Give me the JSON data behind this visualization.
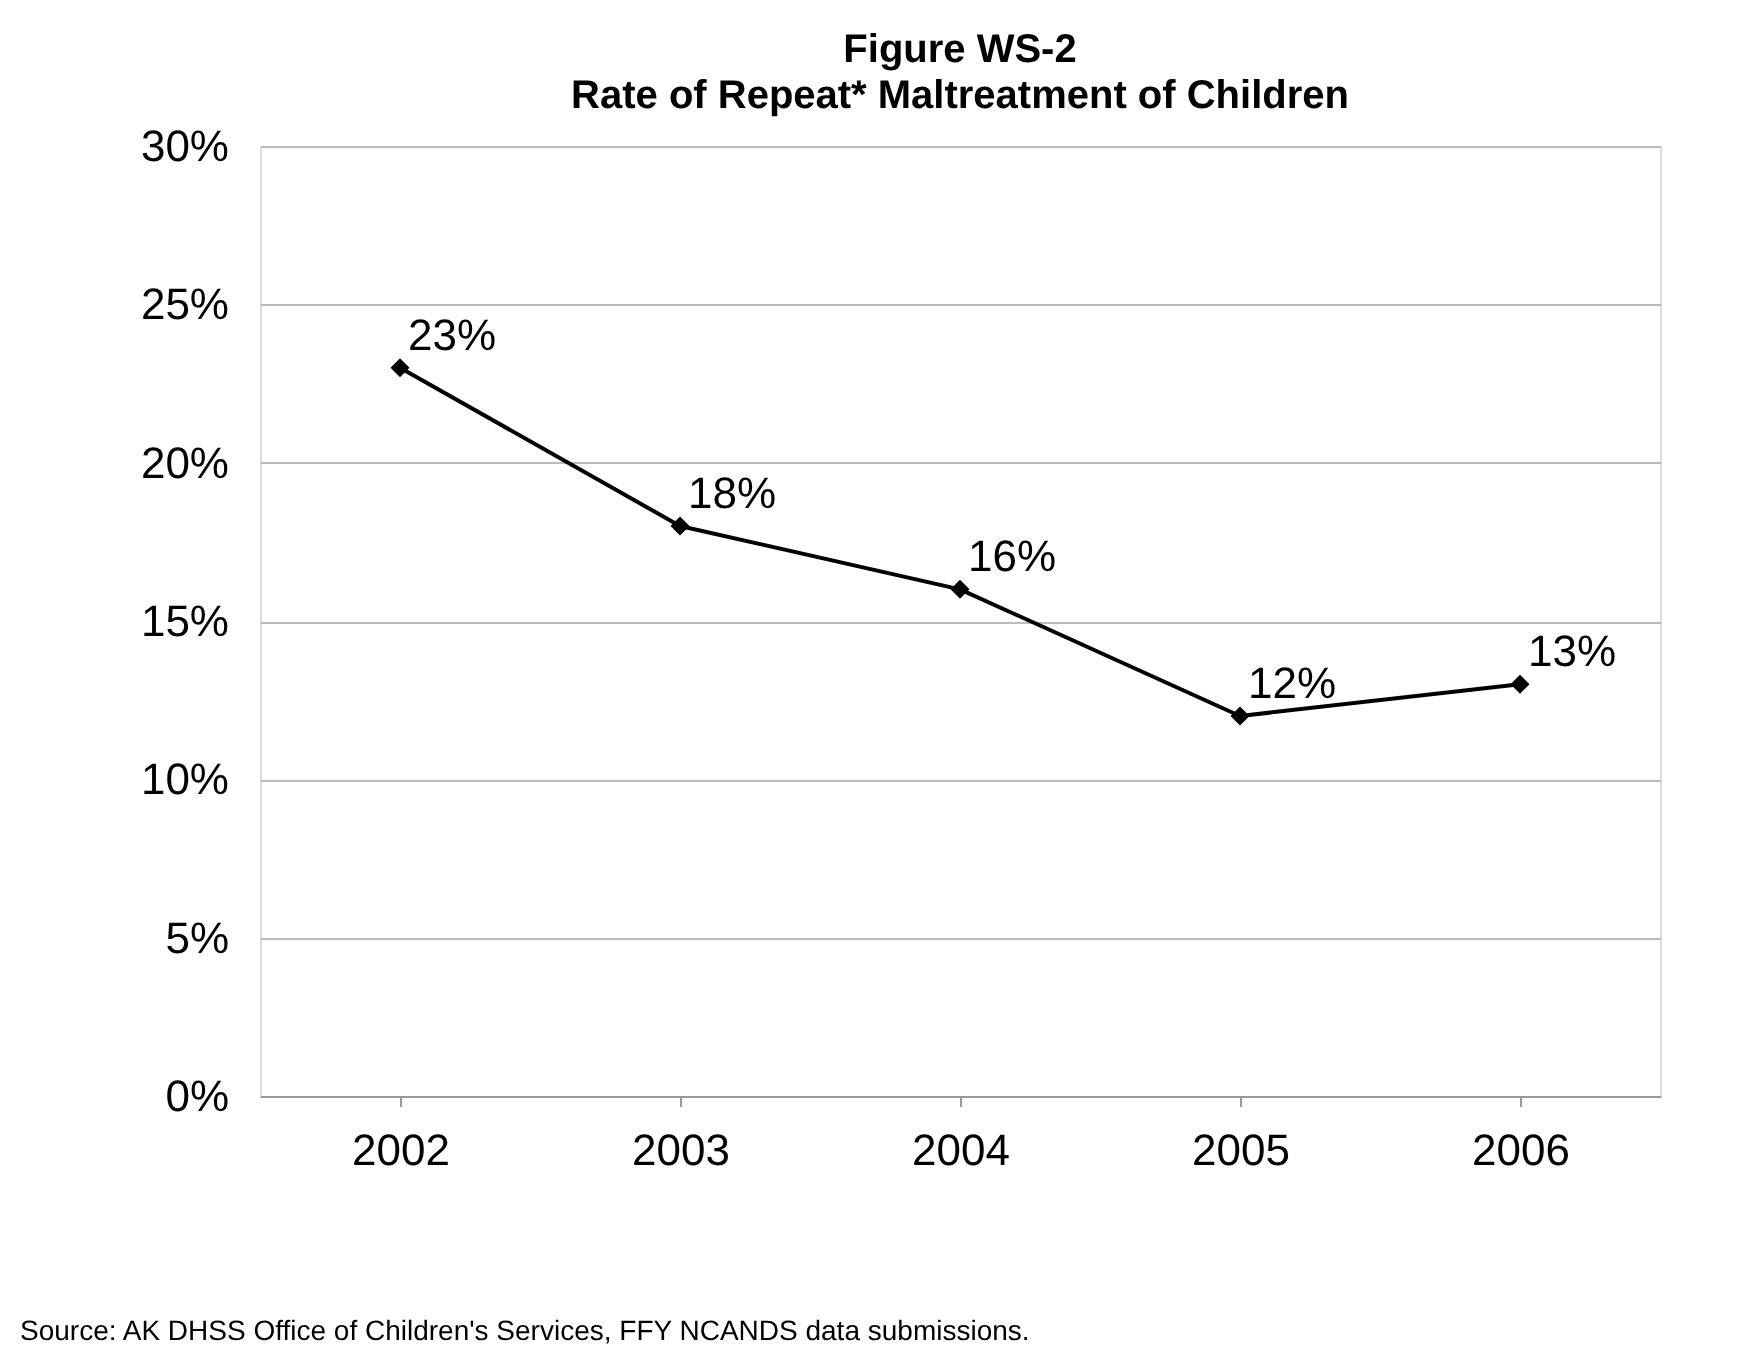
{
  "chart_data": {
    "type": "line",
    "title": "Figure WS-2",
    "subtitle": "Rate of Repeat* Maltreatment of Children",
    "categories": [
      "2002",
      "2003",
      "2004",
      "2005",
      "2006"
    ],
    "series": [
      {
        "color": "#000000",
        "values": [
          23,
          18,
          16,
          12,
          13
        ],
        "value_labels": [
          "23%",
          "18%",
          "16%",
          "12%",
          "13%"
        ]
      }
    ],
    "ylim": [
      0,
      30
    ],
    "yticks": [
      {
        "value": 0,
        "label": "0%"
      },
      {
        "value": 5,
        "label": "5%"
      },
      {
        "value": 10,
        "label": "10%"
      },
      {
        "value": 15,
        "label": "15%"
      },
      {
        "value": 20,
        "label": "20%"
      },
      {
        "value": 25,
        "label": "25%"
      },
      {
        "value": 30,
        "label": "30%"
      }
    ],
    "grid": "y",
    "marker": "diamond",
    "line_style": "solid",
    "annotations": [
      "Source: AK DHSS Office of Children's Services, FFY NCANDS data submissions."
    ]
  }
}
